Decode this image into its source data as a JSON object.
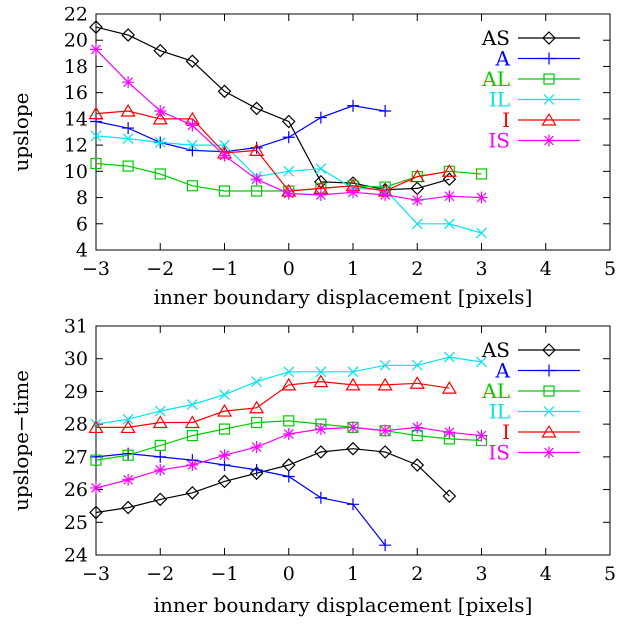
{
  "chart_data": [
    {
      "type": "line",
      "xlabel": "inner boundary displacement [pixels]",
      "ylabel": "upslope",
      "xlim": [
        -3,
        5
      ],
      "ylim": [
        4,
        22
      ],
      "xticks": [
        -3,
        -2,
        -1,
        0,
        1,
        2,
        3,
        4,
        5
      ],
      "yticks": [
        4,
        6,
        8,
        10,
        12,
        14,
        16,
        18,
        20,
        22
      ],
      "xtick_labels": [
        "−3",
        "−2",
        "−1",
        "0",
        "1",
        "2",
        "3",
        "4",
        "5"
      ],
      "ytick_labels": [
        "4",
        "6",
        "8",
        "10",
        "12",
        "14",
        "16",
        "18",
        "20",
        "22"
      ],
      "grid": false,
      "legend": "top-right",
      "series": [
        {
          "name": "AS",
          "color": "#000000",
          "marker": "diamond",
          "x": [
            -3,
            -2.5,
            -2,
            -1.5,
            -1,
            -0.5,
            0,
            0.5,
            1,
            1.5,
            2,
            2.5
          ],
          "y": [
            21.0,
            20.4,
            19.2,
            18.4,
            16.1,
            14.8,
            13.8,
            9.2,
            9.1,
            8.6,
            8.7,
            9.4
          ]
        },
        {
          "name": "A",
          "color": "#0000ff",
          "marker": "plus",
          "x": [
            -3,
            -2.5,
            -2,
            -1.5,
            -1,
            -0.5,
            0,
            0.5,
            1,
            1.5
          ],
          "y": [
            13.8,
            13.3,
            12.2,
            11.6,
            11.5,
            11.8,
            12.6,
            14.1,
            15.0,
            14.6
          ]
        },
        {
          "name": "AL",
          "color": "#00cc00",
          "marker": "square",
          "x": [
            -3,
            -2.5,
            -2,
            -1.5,
            -1,
            -0.5,
            0,
            0.5,
            1,
            1.5,
            2,
            2.5,
            3
          ],
          "y": [
            10.6,
            10.4,
            9.8,
            8.9,
            8.5,
            8.5,
            8.5,
            8.7,
            8.9,
            8.8,
            9.6,
            10.0,
            9.8
          ]
        },
        {
          "name": "IL",
          "color": "#00e5ee",
          "marker": "x",
          "x": [
            -3,
            -2.5,
            -2,
            -1.5,
            -1,
            -0.5,
            0,
            0.5,
            1,
            1.5,
            2,
            2.5,
            3
          ],
          "y": [
            12.7,
            12.5,
            12.2,
            12.0,
            12.0,
            9.6,
            10.0,
            10.2,
            8.7,
            8.6,
            6.0,
            6.0,
            5.3
          ]
        },
        {
          "name": "I",
          "color": "#ff0000",
          "marker": "triangle",
          "x": [
            -3,
            -2.5,
            -2,
            -1.5,
            -1,
            -0.5,
            0,
            0.5,
            1,
            1.5,
            2,
            2.5
          ],
          "y": [
            14.4,
            14.6,
            14.0,
            14.0,
            11.4,
            11.6,
            8.5,
            8.7,
            8.9,
            8.5,
            9.6,
            10.0
          ]
        },
        {
          "name": "IS",
          "color": "#ff00ff",
          "marker": "asterisk",
          "x": [
            -3,
            -2.5,
            -2,
            -1.5,
            -1,
            -0.5,
            0,
            0.5,
            1,
            1.5,
            2,
            2.5,
            3
          ],
          "y": [
            19.3,
            16.8,
            14.6,
            13.5,
            11.2,
            9.4,
            8.3,
            8.2,
            8.4,
            8.2,
            7.8,
            8.1,
            8.0
          ]
        }
      ]
    },
    {
      "type": "line",
      "xlabel": "inner boundary displacement [pixels]",
      "ylabel": "upslope−time",
      "xlim": [
        -3,
        5
      ],
      "ylim": [
        24,
        31
      ],
      "xticks": [
        -3,
        -2,
        -1,
        0,
        1,
        2,
        3,
        4,
        5
      ],
      "yticks": [
        24,
        25,
        26,
        27,
        28,
        29,
        30,
        31
      ],
      "xtick_labels": [
        "−3",
        "−2",
        "−1",
        "0",
        "1",
        "2",
        "3",
        "4",
        "5"
      ],
      "ytick_labels": [
        "24",
        "25",
        "26",
        "27",
        "28",
        "29",
        "30",
        "31"
      ],
      "grid": false,
      "legend": "top-right",
      "series": [
        {
          "name": "AS",
          "color": "#000000",
          "marker": "diamond",
          "x": [
            -3,
            -2.5,
            -2,
            -1.5,
            -1,
            -0.5,
            0,
            0.5,
            1,
            1.5,
            2,
            2.5
          ],
          "y": [
            25.3,
            25.45,
            25.7,
            25.9,
            26.25,
            26.5,
            26.75,
            27.15,
            27.25,
            27.15,
            26.75,
            25.8
          ]
        },
        {
          "name": "A",
          "color": "#0000ff",
          "marker": "plus",
          "x": [
            -3,
            -2.5,
            -2,
            -1.5,
            -1,
            -0.5,
            0,
            0.5,
            1,
            1.5
          ],
          "y": [
            27.0,
            27.1,
            27.0,
            26.9,
            26.75,
            26.6,
            26.4,
            25.75,
            25.55,
            24.3
          ]
        },
        {
          "name": "AL",
          "color": "#00cc00",
          "marker": "square",
          "x": [
            -3,
            -2.5,
            -2,
            -1.5,
            -1,
            -0.5,
            0,
            0.5,
            1,
            1.5,
            2,
            2.5,
            3
          ],
          "y": [
            26.9,
            27.05,
            27.35,
            27.65,
            27.85,
            28.05,
            28.1,
            28.0,
            27.9,
            27.8,
            27.65,
            27.55,
            27.5
          ]
        },
        {
          "name": "IL",
          "color": "#00e5ee",
          "marker": "x",
          "x": [
            -3,
            -2.5,
            -2,
            -1.5,
            -1,
            -0.5,
            0,
            0.5,
            1,
            1.5,
            2,
            2.5,
            3
          ],
          "y": [
            28.0,
            28.15,
            28.4,
            28.6,
            28.9,
            29.3,
            29.6,
            29.6,
            29.6,
            29.8,
            29.8,
            30.05,
            29.9
          ]
        },
        {
          "name": "I",
          "color": "#ff0000",
          "marker": "triangle",
          "x": [
            -3,
            -2.5,
            -2,
            -1.5,
            -1,
            -0.5,
            0,
            0.5,
            1,
            1.5,
            2,
            2.5
          ],
          "y": [
            27.9,
            27.9,
            28.05,
            28.05,
            28.4,
            28.5,
            29.2,
            29.3,
            29.2,
            29.2,
            29.25,
            29.1
          ]
        },
        {
          "name": "IS",
          "color": "#ff00ff",
          "marker": "asterisk",
          "x": [
            -3,
            -2.5,
            -2,
            -1.5,
            -1,
            -0.5,
            0,
            0.5,
            1,
            1.5,
            2,
            2.5,
            3
          ],
          "y": [
            26.05,
            26.3,
            26.6,
            26.75,
            27.05,
            27.3,
            27.7,
            27.85,
            27.9,
            27.8,
            27.9,
            27.75,
            27.65
          ]
        }
      ]
    }
  ]
}
